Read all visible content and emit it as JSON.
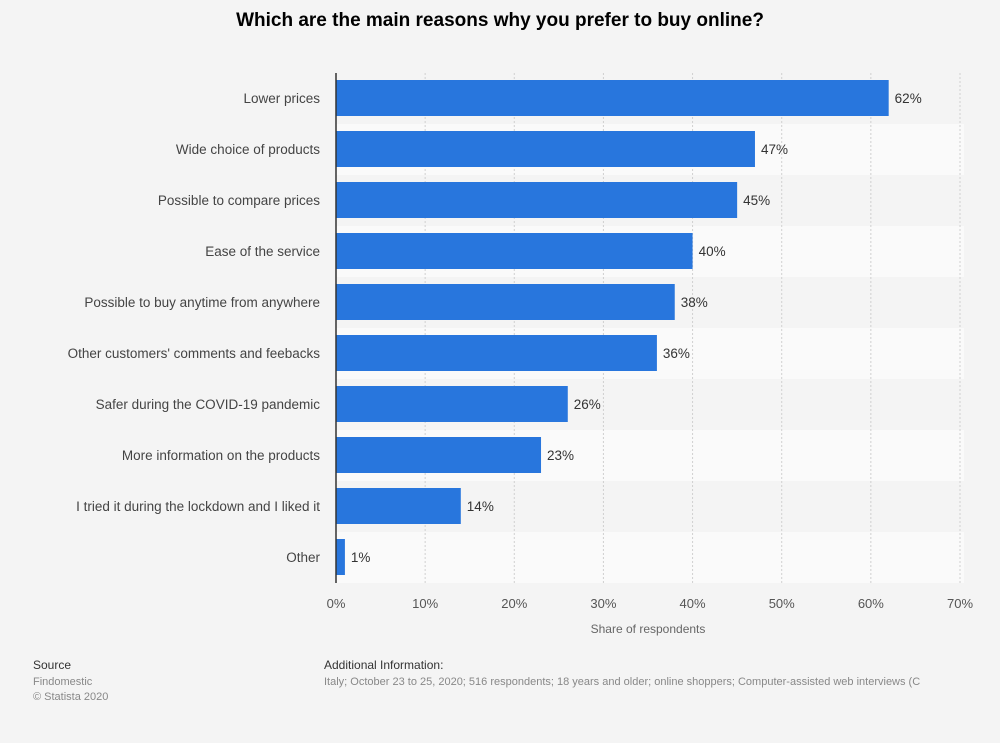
{
  "chart_data": {
    "type": "bar",
    "orientation": "horizontal",
    "title": "Which are the main reasons why you prefer to buy online?",
    "categories": [
      "Lower prices",
      "Wide choice of products",
      "Possible to compare prices",
      "Ease of the service",
      "Possible to buy anytime from anywhere",
      "Other customers' comments and feebacks",
      "Safer during the COVID-19 pandemic",
      "More information on the products",
      "I tried it during the lockdown and I liked it",
      "Other"
    ],
    "values": [
      62,
      47,
      45,
      40,
      38,
      36,
      26,
      23,
      14,
      1
    ],
    "value_labels": [
      "62%",
      "47%",
      "45%",
      "40%",
      "38%",
      "36%",
      "26%",
      "23%",
      "14%",
      "1%"
    ],
    "xlabel": "Share of respondents",
    "xlim": [
      0,
      70
    ],
    "xticks": [
      "0%",
      "10%",
      "20%",
      "30%",
      "40%",
      "50%",
      "60%",
      "70%"
    ],
    "grid": true,
    "bar_color": "#2876dd"
  },
  "footer": {
    "source_label": "Source",
    "source": "Findomestic",
    "copyright": "© Statista 2020",
    "additional_label": "Additional Information:",
    "additional": "Italy; October 23 to 25, 2020; 516 respondents; 18 years and older; online shoppers; Computer-assisted web interviews (C"
  }
}
